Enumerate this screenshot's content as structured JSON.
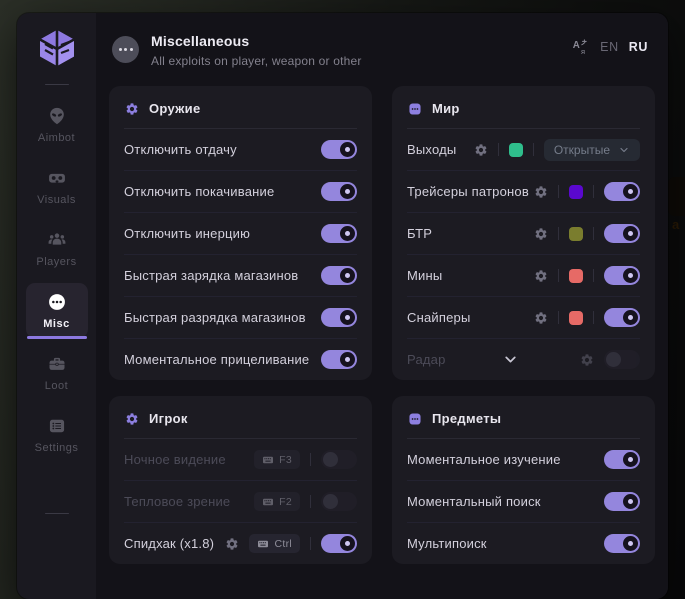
{
  "header": {
    "title": "Miscellaneous",
    "subtitle": "All exploits on player, weapon or other",
    "languages": [
      {
        "code": "EN",
        "active": false
      },
      {
        "code": "RU",
        "active": true
      }
    ]
  },
  "sidebar": {
    "items": [
      {
        "id": "aimbot",
        "label": "Aimbot",
        "icon": "alien-icon",
        "active": false
      },
      {
        "id": "visuals",
        "label": "Visuals",
        "icon": "vr-goggles-icon",
        "active": false
      },
      {
        "id": "players",
        "label": "Players",
        "icon": "people-icon",
        "active": false
      },
      {
        "id": "misc",
        "label": "Misc",
        "icon": "ellipsis-circle-icon",
        "active": true
      },
      {
        "id": "loot",
        "label": "Loot",
        "icon": "briefcase-icon",
        "active": false
      },
      {
        "id": "settings",
        "label": "Settings",
        "icon": "list-icon",
        "active": false
      }
    ]
  },
  "sections": [
    {
      "id": "weapon",
      "title": "Оружие",
      "icon": "gear-icon",
      "rows": [
        {
          "label": "Отключить отдачу",
          "controls": [
            {
              "type": "toggle",
              "on": true
            }
          ]
        },
        {
          "label": "Отключить покачивание",
          "controls": [
            {
              "type": "toggle",
              "on": true
            }
          ]
        },
        {
          "label": "Отключить инерцию",
          "controls": [
            {
              "type": "toggle",
              "on": true
            }
          ]
        },
        {
          "label": "Быстрая зарядка магазинов",
          "controls": [
            {
              "type": "toggle",
              "on": true
            }
          ]
        },
        {
          "label": "Быстрая разрядка магазинов",
          "controls": [
            {
              "type": "toggle",
              "on": true
            }
          ]
        },
        {
          "label": "Моментальное прицеливание",
          "controls": [
            {
              "type": "toggle",
              "on": true
            }
          ]
        }
      ]
    },
    {
      "id": "world",
      "title": "Мир",
      "icon": "dots-badge-icon",
      "rows": [
        {
          "label": "Выходы",
          "controls": [
            {
              "type": "gear"
            },
            {
              "type": "sep"
            },
            {
              "type": "swatch",
              "color": "#2fbe8c"
            },
            {
              "type": "sep"
            },
            {
              "type": "dropdown",
              "value": "Открытые"
            }
          ]
        },
        {
          "label": "Трейсеры патронов",
          "controls": [
            {
              "type": "gear"
            },
            {
              "type": "sep"
            },
            {
              "type": "swatch",
              "color": "#5a08cf"
            },
            {
              "type": "sep"
            },
            {
              "type": "toggle",
              "on": true
            }
          ]
        },
        {
          "label": "БТР",
          "controls": [
            {
              "type": "gear"
            },
            {
              "type": "sep"
            },
            {
              "type": "swatch",
              "color": "#7a7d2e"
            },
            {
              "type": "sep"
            },
            {
              "type": "toggle",
              "on": true
            }
          ]
        },
        {
          "label": "Мины",
          "controls": [
            {
              "type": "gear"
            },
            {
              "type": "sep"
            },
            {
              "type": "swatch",
              "color": "#e66a66"
            },
            {
              "type": "sep"
            },
            {
              "type": "toggle",
              "on": true
            }
          ]
        },
        {
          "label": "Снайперы",
          "controls": [
            {
              "type": "gear"
            },
            {
              "type": "sep"
            },
            {
              "type": "swatch",
              "color": "#e66a66"
            },
            {
              "type": "sep"
            },
            {
              "type": "toggle",
              "on": true
            }
          ]
        },
        {
          "label": "Радар",
          "disabled": true,
          "chevron": true,
          "controls": [
            {
              "type": "gear"
            },
            {
              "type": "toggle",
              "on": false
            }
          ]
        }
      ]
    },
    {
      "id": "player",
      "title": "Игрок",
      "icon": "gear-icon",
      "rows": [
        {
          "label": "Ночное видение",
          "disabled": true,
          "controls": [
            {
              "type": "key",
              "value": "F3"
            },
            {
              "type": "sep"
            },
            {
              "type": "toggle",
              "on": false
            }
          ]
        },
        {
          "label": "Тепловое зрение",
          "disabled": true,
          "controls": [
            {
              "type": "key",
              "value": "F2"
            },
            {
              "type": "sep"
            },
            {
              "type": "toggle",
              "on": false
            }
          ]
        },
        {
          "label": "Спидхак (x1.8)",
          "controls": [
            {
              "type": "gear"
            },
            {
              "type": "key",
              "value": "Ctrl"
            },
            {
              "type": "sep"
            },
            {
              "type": "toggle",
              "on": true
            }
          ]
        }
      ]
    },
    {
      "id": "items",
      "title": "Предметы",
      "icon": "dots-badge-icon",
      "rows": [
        {
          "label": "Моментальное изучение",
          "controls": [
            {
              "type": "toggle",
              "on": true
            }
          ]
        },
        {
          "label": "Моментальный поиск",
          "controls": [
            {
              "type": "toggle",
              "on": true
            }
          ]
        },
        {
          "label": "Мультипоиск",
          "controls": [
            {
              "type": "toggle",
              "on": true
            }
          ]
        }
      ]
    }
  ],
  "colors": {
    "accent": "#9486dd",
    "toggle_on": "#9486dd",
    "section_icon": "#8d7fe0",
    "background_accent_block": "#cf7d26"
  },
  "background": {
    "accent_glyph": "a"
  }
}
